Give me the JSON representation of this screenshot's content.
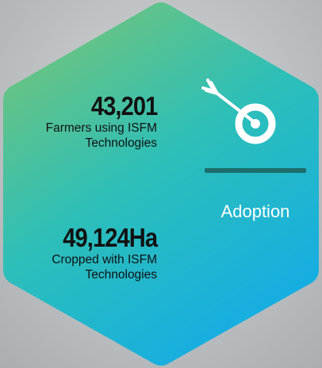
{
  "stats": [
    {
      "value": "43,201",
      "description": [
        "Farmers using ISFM",
        "Technologies"
      ]
    },
    {
      "value": "49,124Ha",
      "description": [
        "Cropped with ISFM",
        "Technologies"
      ]
    }
  ],
  "label": "Adoption"
}
